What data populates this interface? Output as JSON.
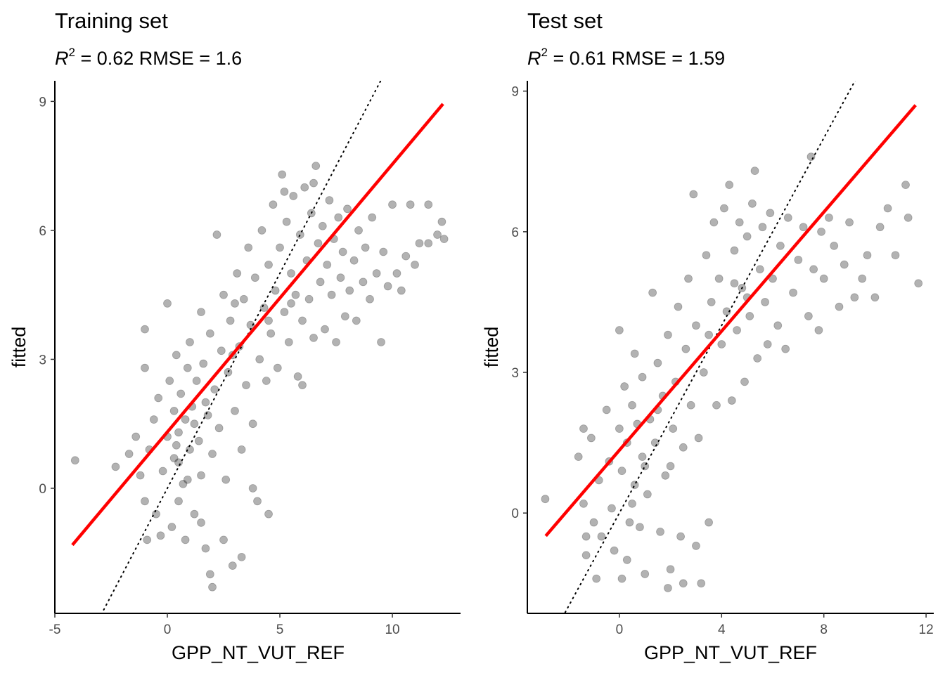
{
  "chart_data": [
    {
      "type": "scatter",
      "title": "Training set",
      "subtitle": {
        "r_label": "R",
        "r_sup": "2",
        "rest": " = 0.62  RMSE = 1.6"
      },
      "xlabel": "GPP_NT_VUT_REF",
      "ylabel": "fitted",
      "xlim": [
        -5,
        13.03
      ],
      "ylim": [
        -2.91,
        9.48
      ],
      "xticks": [
        -5,
        0,
        5,
        10
      ],
      "yticks": [
        0,
        3,
        6,
        9
      ],
      "grid": false,
      "point_color": "#000000",
      "point_alpha": 0.3,
      "fit_line": {
        "color": "#ff0000",
        "slope": 0.623,
        "intercept": 1.31,
        "x_range": [
          -4.22,
          12.25
        ]
      },
      "identity_line": {
        "style": "dotted",
        "slope": 1,
        "intercept": 0
      },
      "points": [
        [
          -4.1,
          0.65
        ],
        [
          -2.3,
          0.5
        ],
        [
          -1.7,
          0.8
        ],
        [
          -1.4,
          1.2
        ],
        [
          -1.2,
          0.3
        ],
        [
          -1.0,
          -0.3
        ],
        [
          -0.9,
          -1.2
        ],
        [
          -0.8,
          0.9
        ],
        [
          -1.0,
          3.7
        ],
        [
          -1.0,
          2.8
        ],
        [
          -0.6,
          1.6
        ],
        [
          -0.5,
          -0.6
        ],
        [
          -0.4,
          2.1
        ],
        [
          -0.3,
          -1.1
        ],
        [
          -0.2,
          0.4
        ],
        [
          0,
          4.3
        ],
        [
          0,
          1.2
        ],
        [
          0.1,
          2.5
        ],
        [
          0.2,
          -0.9
        ],
        [
          0.3,
          0.7
        ],
        [
          0.3,
          1.8
        ],
        [
          0.4,
          3.1
        ],
        [
          0.5,
          -0.3
        ],
        [
          0.5,
          1.3
        ],
        [
          0.6,
          2.2
        ],
        [
          0.7,
          0.1
        ],
        [
          0.8,
          1.6
        ],
        [
          0.8,
          -1.2
        ],
        [
          0.9,
          2.8
        ],
        [
          1.0,
          0.9
        ],
        [
          1.0,
          3.4
        ],
        [
          1.1,
          1.9
        ],
        [
          1.2,
          -0.6
        ],
        [
          1.3,
          2.5
        ],
        [
          1.4,
          1.1
        ],
        [
          1.5,
          4.1
        ],
        [
          1.5,
          0.3
        ],
        [
          1.6,
          2.9
        ],
        [
          1.7,
          -1.4
        ],
        [
          1.8,
          1.7
        ],
        [
          1.9,
          3.6
        ],
        [
          1.9,
          -2.0
        ],
        [
          2.0,
          -2.3
        ],
        [
          2.0,
          0.8
        ],
        [
          2.1,
          2.3
        ],
        [
          2.2,
          5.9
        ],
        [
          2.3,
          1.4
        ],
        [
          2.4,
          3.2
        ],
        [
          2.5,
          4.5
        ],
        [
          2.5,
          -1.2
        ],
        [
          2.6,
          0.2
        ],
        [
          2.7,
          2.7
        ],
        [
          2.8,
          3.9
        ],
        [
          2.9,
          -1.8
        ],
        [
          3.0,
          1.8
        ],
        [
          3.1,
          5.0
        ],
        [
          3.2,
          3.3
        ],
        [
          3.3,
          -1.6
        ],
        [
          3.3,
          0.9
        ],
        [
          3.4,
          4.4
        ],
        [
          3.5,
          2.4
        ],
        [
          3.6,
          5.6
        ],
        [
          3.7,
          3.8
        ],
        [
          3.8,
          1.5
        ],
        [
          3.9,
          4.9
        ],
        [
          4.0,
          -0.3
        ],
        [
          4.1,
          3.0
        ],
        [
          4.2,
          6.0
        ],
        [
          4.3,
          4.2
        ],
        [
          4.4,
          2.5
        ],
        [
          4.5,
          5.2
        ],
        [
          4.6,
          3.6
        ],
        [
          4.7,
          6.6
        ],
        [
          4.8,
          4.6
        ],
        [
          4.9,
          2.8
        ],
        [
          5.0,
          5.6
        ],
        [
          5.1,
          7.3
        ],
        [
          5.2,
          4.1
        ],
        [
          5.3,
          6.2
        ],
        [
          5.4,
          3.4
        ],
        [
          5.5,
          5.0
        ],
        [
          5.6,
          6.8
        ],
        [
          5.7,
          4.5
        ],
        [
          5.8,
          2.6
        ],
        [
          5.9,
          5.9
        ],
        [
          6.0,
          3.9
        ],
        [
          6.1,
          7.0
        ],
        [
          6.2,
          5.3
        ],
        [
          6.3,
          4.4
        ],
        [
          6.4,
          6.4
        ],
        [
          6.5,
          3.5
        ],
        [
          6.6,
          7.5
        ],
        [
          6.7,
          5.7
        ],
        [
          6.8,
          4.8
        ],
        [
          6.9,
          6.1
        ],
        [
          7.0,
          3.7
        ],
        [
          7.1,
          5.2
        ],
        [
          7.2,
          6.7
        ],
        [
          7.3,
          4.5
        ],
        [
          7.4,
          5.8
        ],
        [
          7.5,
          3.4
        ],
        [
          7.6,
          6.3
        ],
        [
          7.7,
          4.9
        ],
        [
          7.8,
          5.5
        ],
        [
          7.9,
          4.0
        ],
        [
          8.0,
          6.5
        ],
        [
          8.1,
          4.6
        ],
        [
          8.3,
          5.3
        ],
        [
          8.4,
          3.9
        ],
        [
          8.5,
          6.0
        ],
        [
          8.7,
          4.8
        ],
        [
          8.8,
          5.6
        ],
        [
          9.0,
          4.4
        ],
        [
          9.1,
          6.3
        ],
        [
          9.3,
          5.0
        ],
        [
          9.5,
          3.4
        ],
        [
          9.6,
          5.5
        ],
        [
          9.8,
          4.7
        ],
        [
          10.0,
          6.6
        ],
        [
          10.2,
          5.0
        ],
        [
          10.4,
          4.6
        ],
        [
          10.6,
          5.4
        ],
        [
          10.8,
          6.6
        ],
        [
          11.0,
          5.2
        ],
        [
          11.2,
          5.7
        ],
        [
          11.6,
          5.7
        ],
        [
          11.6,
          6.6
        ],
        [
          12.0,
          5.9
        ],
        [
          12.2,
          6.2
        ],
        [
          12.3,
          5.8
        ],
        [
          6.0,
          2.4
        ],
        [
          4.5,
          -0.6
        ],
        [
          3.8,
          0.0
        ],
        [
          1.5,
          -0.8
        ],
        [
          0.5,
          0.6
        ],
        [
          0.9,
          0.2
        ],
        [
          1.2,
          1.5
        ],
        [
          0.4,
          1.0
        ],
        [
          1.7,
          2.0
        ],
        [
          4.5,
          3.9
        ],
        [
          5.5,
          4.3
        ],
        [
          5.2,
          6.9
        ],
        [
          6.5,
          7.1
        ],
        [
          3.0,
          4.3
        ],
        [
          2.9,
          3.1
        ]
      ]
    },
    {
      "type": "scatter",
      "title": "Test set",
      "subtitle": {
        "r_label": "R",
        "r_sup": "2",
        "rest": " = 0.61  RMSE = 1.59"
      },
      "xlabel": "GPP_NT_VUT_REF",
      "ylabel": "fitted",
      "xlim": [
        -3.6,
        12.3
      ],
      "ylim": [
        -2.14,
        9.22
      ],
      "xticks": [
        0,
        4,
        8,
        12
      ],
      "yticks": [
        0,
        3,
        6,
        9
      ],
      "grid": false,
      "point_color": "#000000",
      "point_alpha": 0.3,
      "fit_line": {
        "color": "#ff0000",
        "slope": 0.635,
        "intercept": 1.34,
        "x_range": [
          -2.88,
          11.59
        ]
      },
      "identity_line": {
        "style": "dotted",
        "slope": 1,
        "intercept": 0
      },
      "points": [
        [
          -2.9,
          0.3
        ],
        [
          -1.6,
          1.2
        ],
        [
          -1.4,
          1.8
        ],
        [
          -1.4,
          0.2
        ],
        [
          -1.3,
          -0.5
        ],
        [
          -1.3,
          -0.9
        ],
        [
          -1.1,
          1.6
        ],
        [
          -1.0,
          -0.2
        ],
        [
          -0.9,
          -1.4
        ],
        [
          -0.8,
          0.7
        ],
        [
          -0.7,
          -0.5
        ],
        [
          -0.5,
          2.2
        ],
        [
          -0.4,
          1.1
        ],
        [
          -0.3,
          0.1
        ],
        [
          -0.2,
          -0.8
        ],
        [
          0,
          3.9
        ],
        [
          0.0,
          1.8
        ],
        [
          0.1,
          0.9
        ],
        [
          0.1,
          -1.4
        ],
        [
          0.2,
          2.7
        ],
        [
          0.3,
          1.5
        ],
        [
          0.3,
          -1.0
        ],
        [
          0.4,
          -0.2
        ],
        [
          0.5,
          2.3
        ],
        [
          0.6,
          0.6
        ],
        [
          0.6,
          3.4
        ],
        [
          0.7,
          1.9
        ],
        [
          0.8,
          -0.3
        ],
        [
          0.9,
          1.2
        ],
        [
          0.9,
          2.9
        ],
        [
          1.0,
          -1.3
        ],
        [
          1.1,
          0.4
        ],
        [
          1.2,
          2.0
        ],
        [
          1.3,
          4.7
        ],
        [
          1.4,
          1.5
        ],
        [
          1.5,
          3.2
        ],
        [
          1.6,
          -0.4
        ],
        [
          1.7,
          2.5
        ],
        [
          1.8,
          0.8
        ],
        [
          1.9,
          3.8
        ],
        [
          1.9,
          -1.6
        ],
        [
          2.0,
          -1.2
        ],
        [
          2.1,
          1.8
        ],
        [
          2.2,
          2.8
        ],
        [
          2.3,
          4.4
        ],
        [
          2.4,
          -0.5
        ],
        [
          2.5,
          1.4
        ],
        [
          2.5,
          -1.5
        ],
        [
          2.6,
          3.5
        ],
        [
          2.7,
          5.0
        ],
        [
          2.8,
          2.3
        ],
        [
          2.9,
          6.8
        ],
        [
          3.0,
          4.0
        ],
        [
          3.0,
          -0.7
        ],
        [
          3.1,
          1.6
        ],
        [
          3.2,
          -1.5
        ],
        [
          3.3,
          3.0
        ],
        [
          3.4,
          5.5
        ],
        [
          3.5,
          -0.2
        ],
        [
          3.6,
          4.5
        ],
        [
          3.7,
          6.2
        ],
        [
          3.8,
          2.3
        ],
        [
          3.9,
          5.0
        ],
        [
          4.0,
          3.6
        ],
        [
          4.1,
          6.5
        ],
        [
          4.2,
          4.3
        ],
        [
          4.3,
          7.0
        ],
        [
          4.4,
          2.4
        ],
        [
          4.5,
          5.6
        ],
        [
          4.6,
          3.9
        ],
        [
          4.7,
          6.2
        ],
        [
          4.8,
          4.8
        ],
        [
          4.9,
          2.8
        ],
        [
          5.0,
          5.9
        ],
        [
          5.1,
          4.2
        ],
        [
          5.2,
          6.6
        ],
        [
          5.3,
          7.3
        ],
        [
          5.4,
          3.3
        ],
        [
          5.5,
          5.2
        ],
        [
          5.6,
          6.1
        ],
        [
          5.7,
          4.5
        ],
        [
          5.8,
          3.6
        ],
        [
          5.9,
          6.4
        ],
        [
          6.0,
          5.0
        ],
        [
          6.2,
          4.0
        ],
        [
          6.3,
          5.7
        ],
        [
          6.5,
          3.5
        ],
        [
          6.6,
          6.3
        ],
        [
          6.8,
          4.7
        ],
        [
          7.0,
          5.4
        ],
        [
          7.2,
          6.1
        ],
        [
          7.4,
          4.2
        ],
        [
          7.5,
          7.6
        ],
        [
          7.6,
          5.2
        ],
        [
          7.8,
          3.9
        ],
        [
          7.9,
          6.0
        ],
        [
          8.0,
          5.0
        ],
        [
          8.2,
          6.3
        ],
        [
          8.4,
          5.7
        ],
        [
          8.6,
          4.4
        ],
        [
          8.8,
          5.3
        ],
        [
          9.0,
          6.2
        ],
        [
          9.2,
          4.6
        ],
        [
          9.5,
          5.0
        ],
        [
          9.7,
          5.5
        ],
        [
          10.0,
          4.6
        ],
        [
          10.2,
          6.1
        ],
        [
          10.5,
          6.5
        ],
        [
          10.8,
          5.5
        ],
        [
          11.2,
          7.0
        ],
        [
          11.3,
          6.3
        ],
        [
          11.7,
          4.9
        ],
        [
          1.0,
          1.0
        ],
        [
          0.5,
          0.2
        ],
        [
          1.5,
          2.2
        ],
        [
          2.0,
          1.0
        ],
        [
          4.5,
          4.9
        ],
        [
          5.0,
          4.6
        ],
        [
          3.5,
          3.8
        ]
      ]
    }
  ]
}
